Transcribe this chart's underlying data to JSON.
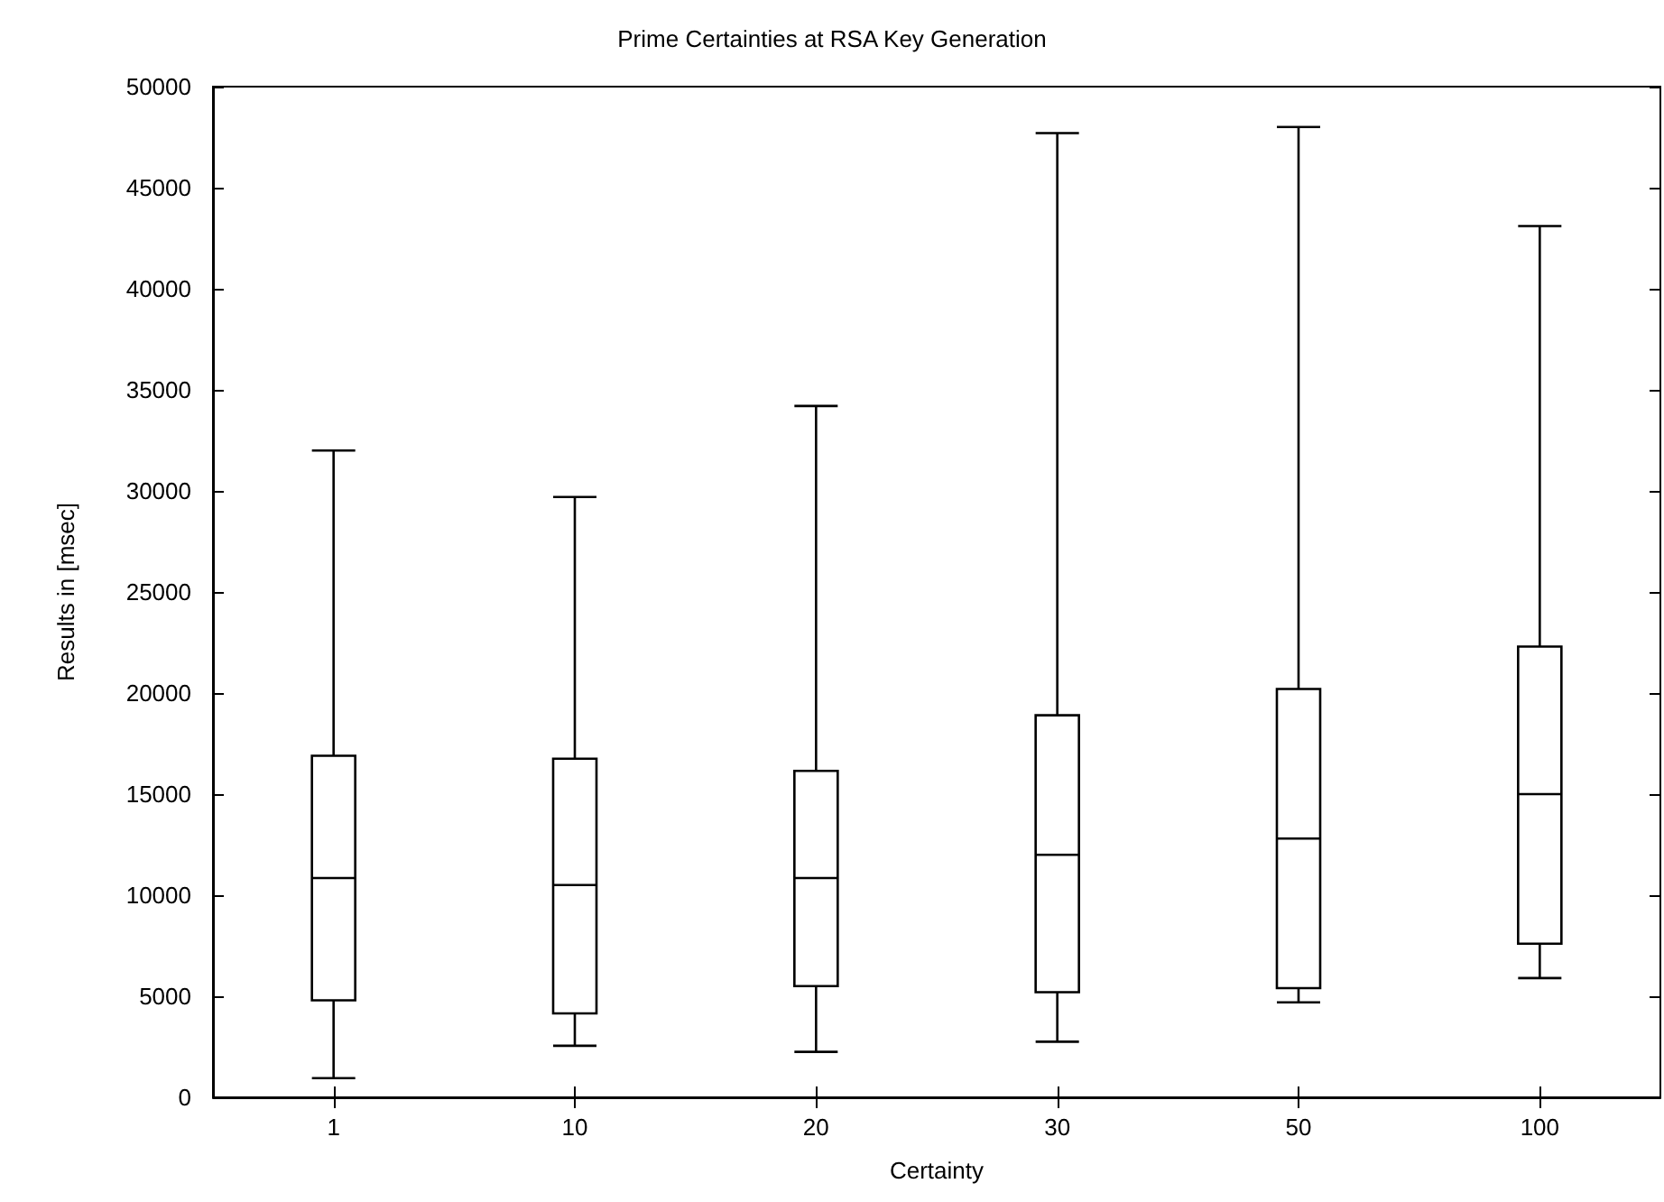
{
  "chart_data": {
    "type": "box",
    "title": "Prime Certainties at RSA Key Generation",
    "xlabel": "Certainty",
    "ylabel": "Results in [msec]",
    "categories": [
      "1",
      "10",
      "20",
      "30",
      "50",
      "100"
    ],
    "color": "#000000",
    "boxes": [
      {
        "low": 950,
        "q1": 4800,
        "median": 10850,
        "q3": 16900,
        "high": 32000
      },
      {
        "low": 2550,
        "q1": 4150,
        "median": 10500,
        "q3": 16750,
        "high": 29700
      },
      {
        "low": 2250,
        "q1": 5500,
        "median": 10850,
        "q3": 16150,
        "high": 34200
      },
      {
        "low": 2750,
        "q1": 5200,
        "median": 12000,
        "q3": 18900,
        "high": 47700
      },
      {
        "low": 4700,
        "q1": 5400,
        "median": 12800,
        "q3": 20200,
        "high": 48000
      },
      {
        "low": 5900,
        "q1": 7600,
        "median": 15000,
        "q3": 22300,
        "high": 43100
      }
    ],
    "ylim": [
      0,
      50000
    ],
    "yticks": [
      0,
      5000,
      10000,
      15000,
      20000,
      25000,
      30000,
      35000,
      40000,
      45000,
      50000
    ]
  }
}
